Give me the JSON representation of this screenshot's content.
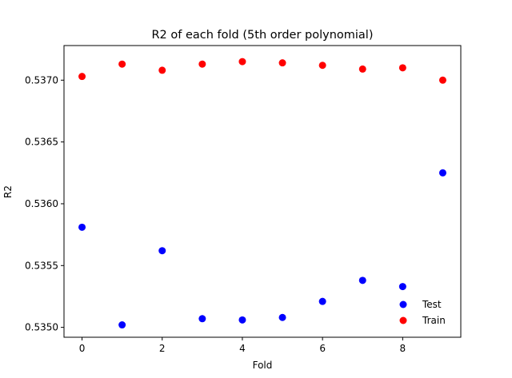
{
  "chart_data": {
    "type": "scatter",
    "title": "R2 of each fold (5th order polynomial)",
    "xlabel": "Fold",
    "ylabel": "R2",
    "xlim": [
      -0.45,
      9.45
    ],
    "ylim": [
      0.53492,
      0.53728
    ],
    "xticks": [
      0,
      2,
      4,
      6,
      8
    ],
    "yticks": [
      0.535,
      0.5355,
      0.536,
      0.5365,
      0.537
    ],
    "grid": false,
    "legend": "bottom-right",
    "series": [
      {
        "name": "Test",
        "color": "#0000ff",
        "x": [
          0,
          1,
          2,
          3,
          4,
          5,
          6,
          7,
          8,
          9
        ],
        "y": [
          0.53581,
          0.53502,
          0.53562,
          0.53507,
          0.53506,
          0.53508,
          0.53521,
          0.53538,
          0.53533,
          0.53625
        ]
      },
      {
        "name": "Train",
        "color": "#ff0000",
        "x": [
          0,
          1,
          2,
          3,
          4,
          5,
          6,
          7,
          8,
          9
        ],
        "y": [
          0.53703,
          0.53713,
          0.53708,
          0.53713,
          0.53715,
          0.53714,
          0.53712,
          0.53709,
          0.5371,
          0.537
        ]
      }
    ]
  }
}
